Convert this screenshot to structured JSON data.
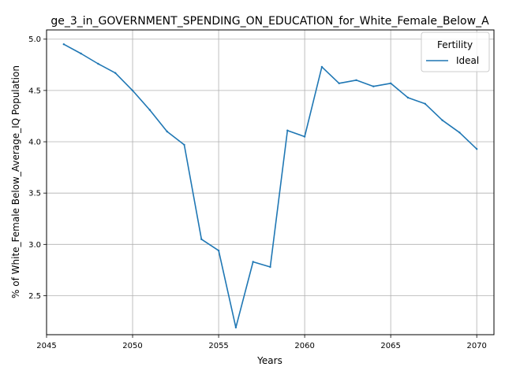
{
  "chart_data": {
    "type": "line",
    "title": "ge_3_in_GOVERNMENT_SPENDING_ON_EDUCATION_for_White_Female_Below_A",
    "xlabel": "Years",
    "ylabel": "% of White_Female Below_Average_IQ Population",
    "xlim": [
      2045,
      2071
    ],
    "ylim": [
      2.12,
      5.09
    ],
    "xticks": [
      2045,
      2050,
      2055,
      2060,
      2065,
      2070
    ],
    "yticks": [
      2.5,
      3.0,
      3.5,
      4.0,
      4.5,
      5.0
    ],
    "xtick_labels": [
      "2045",
      "2050",
      "2055",
      "2060",
      "2065",
      "2070"
    ],
    "ytick_labels": [
      "2.5",
      "3.0",
      "3.5",
      "4.0",
      "4.5",
      "5.0"
    ],
    "grid": true,
    "legend": {
      "title": "Fertility",
      "placement": "top-right"
    },
    "series": [
      {
        "name": "Ideal",
        "color": "#1f77b4",
        "x": [
          2046,
          2047,
          2048,
          2049,
          2050,
          2051,
          2052,
          2053,
          2054,
          2055,
          2056,
          2057,
          2058,
          2059,
          2060,
          2061,
          2062,
          2063,
          2064,
          2065,
          2066,
          2067,
          2068,
          2069,
          2070
        ],
        "y": [
          4.95,
          4.86,
          4.76,
          4.67,
          4.5,
          4.31,
          4.1,
          3.97,
          3.05,
          2.94,
          2.19,
          2.83,
          2.78,
          4.11,
          4.05,
          4.73,
          4.57,
          4.6,
          4.54,
          4.57,
          4.43,
          4.37,
          4.21,
          4.09,
          3.93
        ]
      }
    ]
  }
}
